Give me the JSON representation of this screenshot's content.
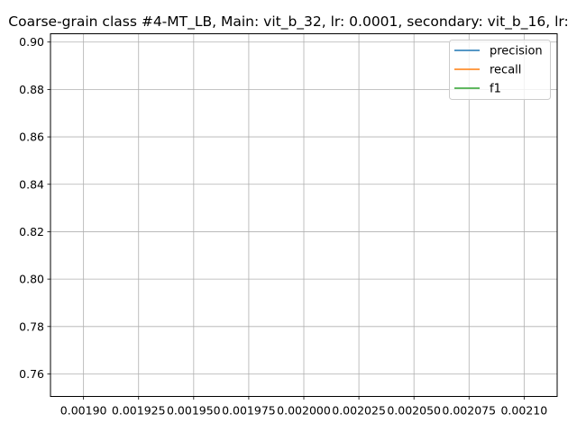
{
  "chart_data": {
    "type": "line",
    "title": "Coarse-grain class #4-MT_LB, Main: vit_b_32, lr: 0.0001, secondary: vit_b_16, lr:",
    "xlabel": "",
    "ylabel": "",
    "xlim": [
      0.001885,
      0.002115
    ],
    "ylim": [
      0.7505,
      0.9035
    ],
    "x_ticks": [
      0.0019,
      0.001925,
      0.00195,
      0.001975,
      0.002,
      0.002025,
      0.00205,
      0.002075,
      0.0021
    ],
    "x_tick_labels": [
      "0.00190",
      "0.001925",
      "0.001950",
      "0.001975",
      "0.002000",
      "0.002025",
      "0.002050",
      "0.002075",
      "0.00210"
    ],
    "y_ticks": [
      0.76,
      0.78,
      0.8,
      0.82,
      0.84,
      0.86,
      0.88,
      0.9
    ],
    "y_tick_labels": [
      "0.76",
      "0.78",
      "0.80",
      "0.82",
      "0.84",
      "0.86",
      "0.88",
      "0.90"
    ],
    "grid": true,
    "legend_position": "upper right",
    "series": [
      {
        "name": "precision",
        "color": "#1f77b4",
        "x": [],
        "y": []
      },
      {
        "name": "recall",
        "color": "#ff7f0e",
        "x": [],
        "y": []
      },
      {
        "name": "f1",
        "color": "#2ca02c",
        "x": [],
        "y": []
      }
    ]
  }
}
